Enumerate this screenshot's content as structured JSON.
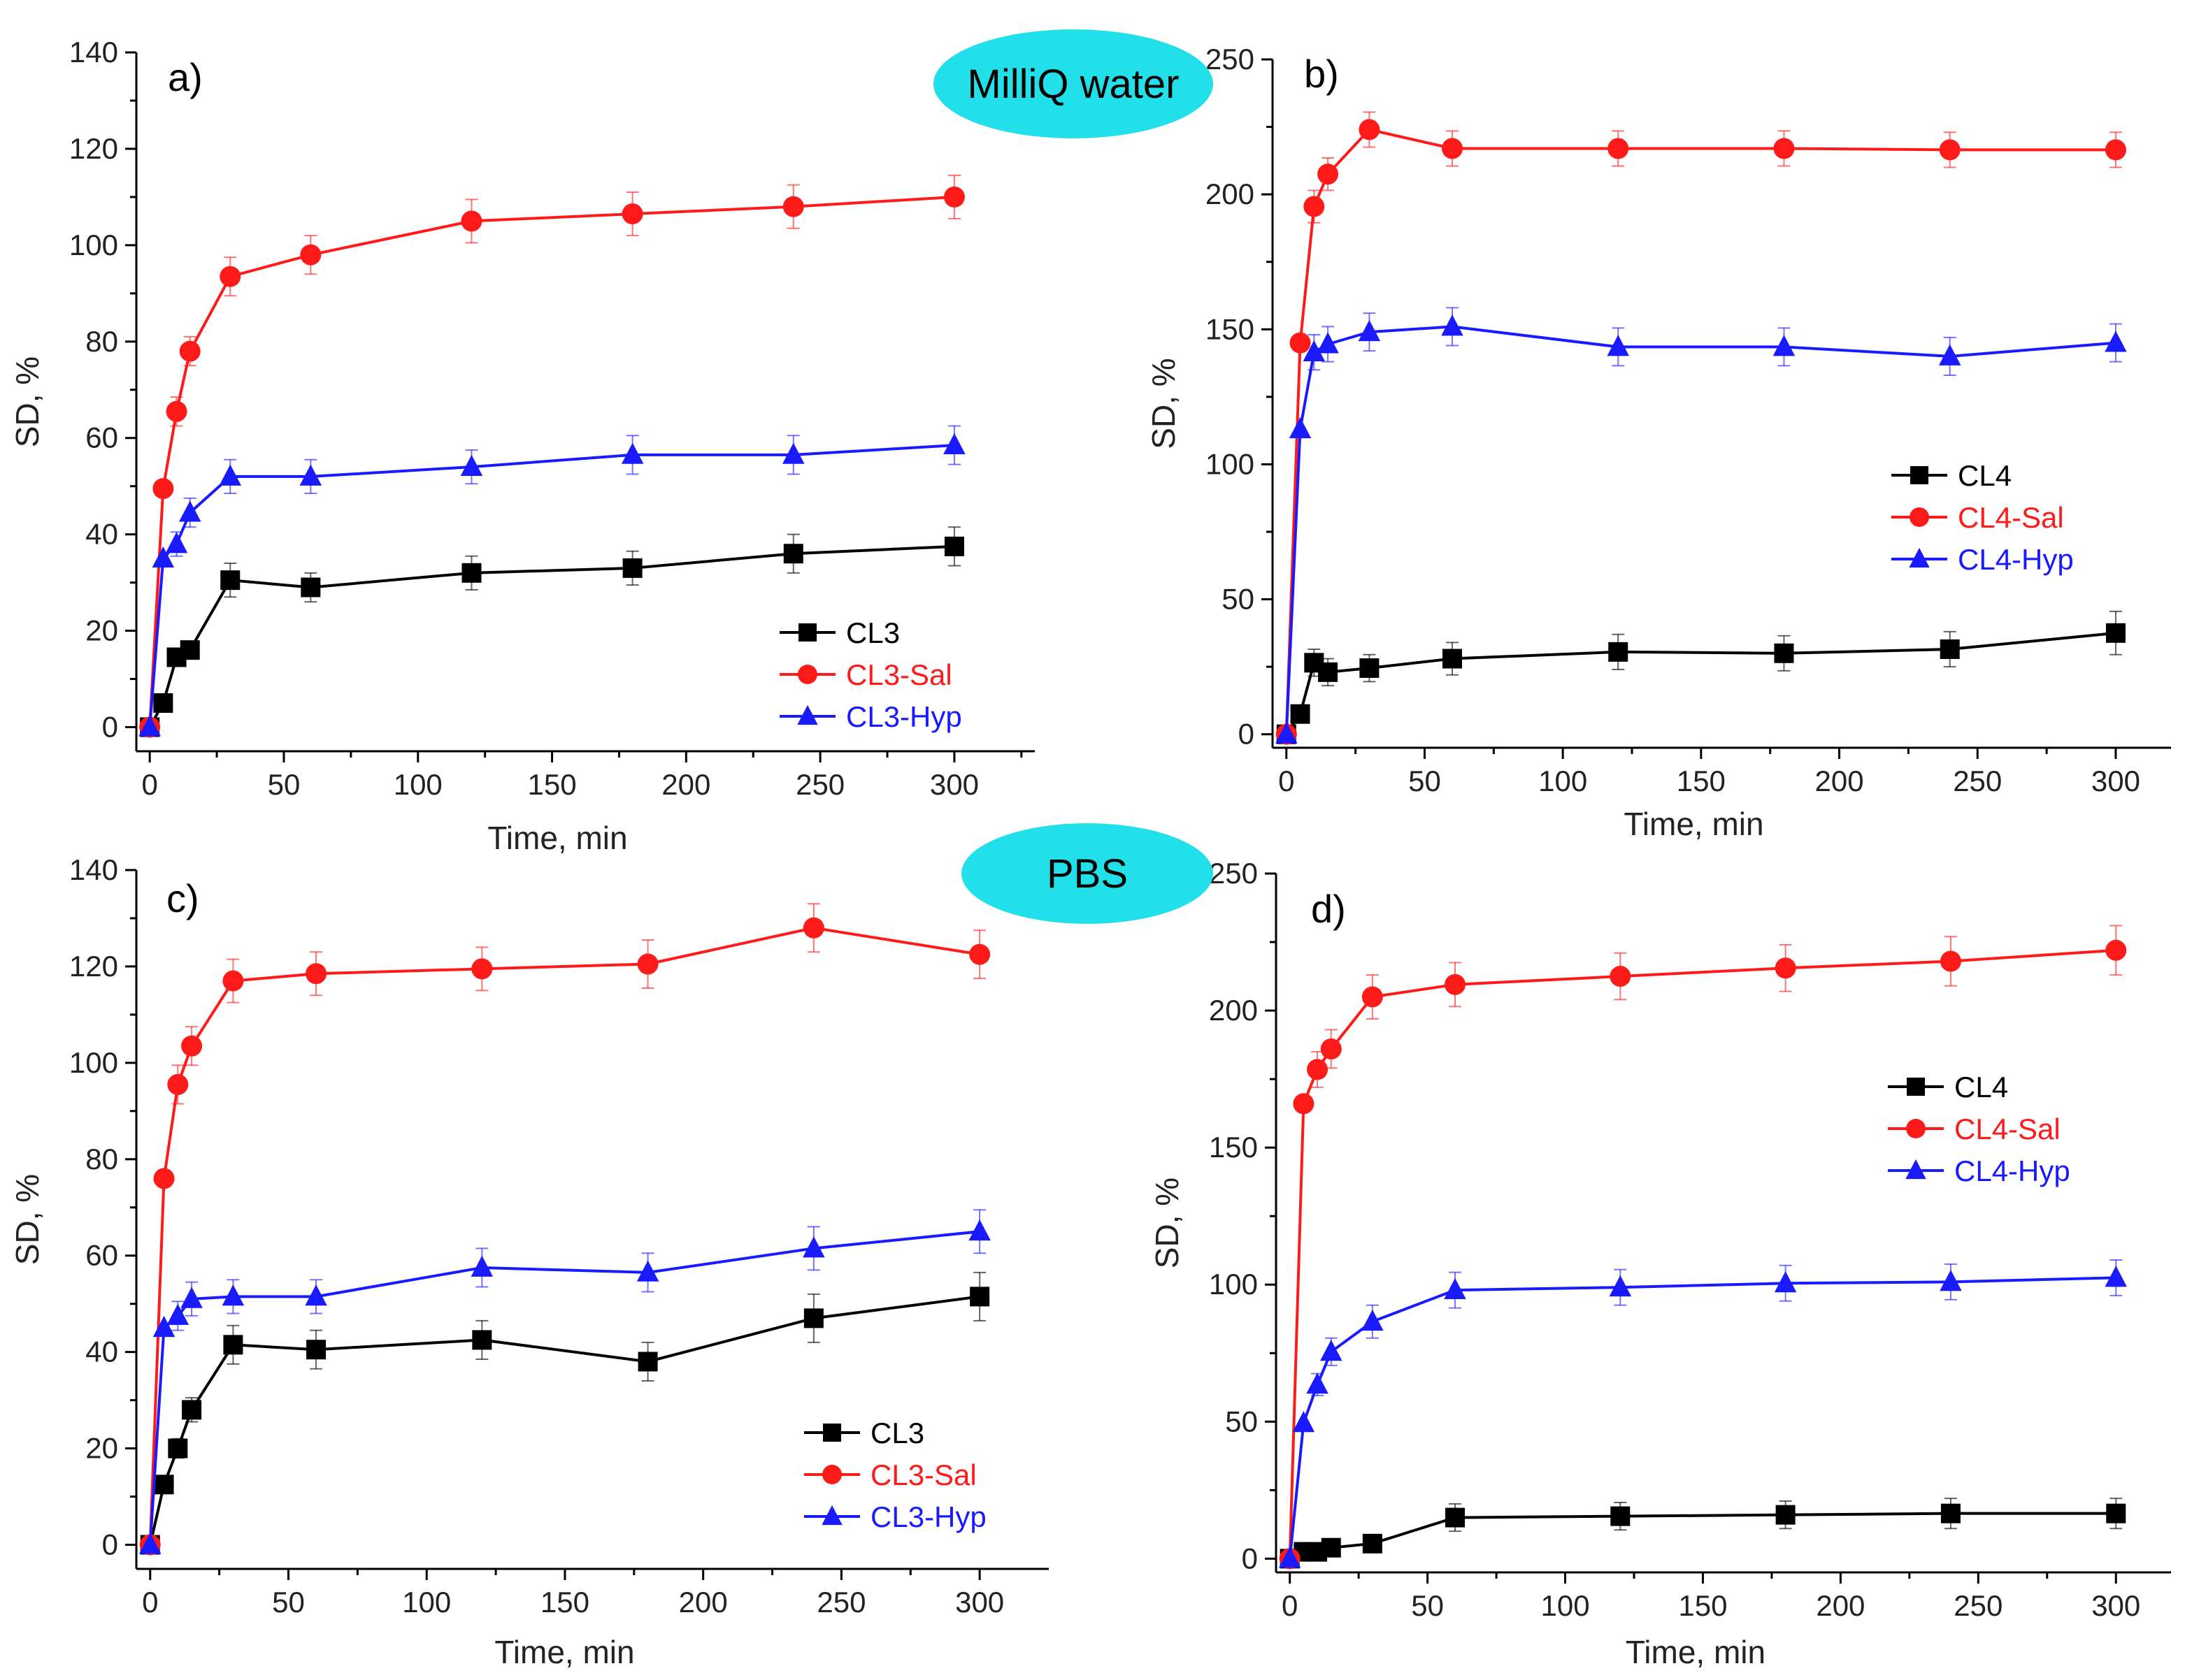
{
  "badges": {
    "top": "MilliQ water",
    "bottom": "PBS",
    "color": "#22e0ea"
  },
  "colors": {
    "black": "#000000",
    "red": "#ff1a1a",
    "blue": "#1a1aff"
  },
  "chart_data": [
    {
      "type": "line",
      "panel_label": "a)",
      "xlabel": "Time, min",
      "ylabel": "SD, %",
      "xlim": [
        -5,
        330
      ],
      "ylim": [
        -5,
        140
      ],
      "xticks": [
        0,
        50,
        100,
        150,
        200,
        250,
        300
      ],
      "yticks": [
        0,
        20,
        40,
        60,
        80,
        100,
        120,
        140
      ],
      "legend_position": "bottom-right",
      "x": [
        0,
        5,
        10,
        15,
        30,
        60,
        120,
        180,
        240,
        300
      ],
      "series": [
        {
          "name": "CL3",
          "color": "#000000",
          "marker": "square",
          "values": [
            0,
            5,
            14.5,
            16,
            30.5,
            29,
            32,
            33,
            36,
            37.5
          ],
          "errors": [
            0,
            0,
            0,
            0,
            3.5,
            3,
            3.5,
            3.5,
            4,
            4
          ]
        },
        {
          "name": "CL3-Sal",
          "color": "#ff1a1a",
          "marker": "circle",
          "values": [
            0,
            49.5,
            65.5,
            78,
            93.5,
            98,
            105,
            106.5,
            108,
            110
          ],
          "errors": [
            0,
            0,
            3,
            3,
            4,
            4,
            4.5,
            4.5,
            4.5,
            4.5
          ]
        },
        {
          "name": "CL3-Hyp",
          "color": "#1a1aff",
          "marker": "triangle",
          "values": [
            0,
            35,
            38,
            44.5,
            52,
            52,
            54,
            56.5,
            56.5,
            58.5
          ],
          "errors": [
            0,
            0,
            2.5,
            3,
            3.5,
            3.5,
            3.5,
            4,
            4,
            4
          ]
        }
      ]
    },
    {
      "type": "line",
      "panel_label": "b)",
      "xlabel": "Time, min",
      "ylabel": "SD, %",
      "xlim": [
        -5,
        320
      ],
      "ylim": [
        -5,
        250
      ],
      "xticks": [
        0,
        50,
        100,
        150,
        200,
        250,
        300
      ],
      "yticks": [
        0,
        50,
        100,
        150,
        200,
        250
      ],
      "legend_position": "right",
      "x": [
        0,
        5,
        10,
        15,
        30,
        60,
        120,
        180,
        240,
        300
      ],
      "series": [
        {
          "name": "CL4",
          "color": "#000000",
          "marker": "square",
          "values": [
            0,
            7.5,
            26.5,
            23,
            24.5,
            28,
            30.5,
            30,
            31.5,
            37.5
          ],
          "errors": [
            0,
            0,
            5,
            5,
            5,
            6,
            6.5,
            6.5,
            6.5,
            8
          ]
        },
        {
          "name": "CL4-Sal",
          "color": "#ff1a1a",
          "marker": "circle",
          "values": [
            0,
            145,
            195.5,
            207.5,
            224,
            217,
            217,
            217,
            216.5,
            216.5
          ],
          "errors": [
            0,
            0,
            6,
            6,
            6.5,
            6.5,
            6.5,
            6.5,
            6.5,
            6.5
          ]
        },
        {
          "name": "CL4-Hyp",
          "color": "#1a1aff",
          "marker": "triangle",
          "values": [
            0,
            113,
            141.5,
            144.5,
            149,
            151,
            143.5,
            143.5,
            140,
            145
          ],
          "errors": [
            0,
            0,
            6.5,
            6.5,
            7,
            7,
            7,
            7,
            7,
            7
          ]
        }
      ]
    },
    {
      "type": "line",
      "panel_label": "c)",
      "xlabel": "Time, min",
      "ylabel": "SD, %",
      "xlim": [
        -5,
        325
      ],
      "ylim": [
        -5,
        140
      ],
      "xticks": [
        0,
        50,
        100,
        150,
        200,
        250,
        300
      ],
      "yticks": [
        0,
        20,
        40,
        60,
        80,
        100,
        120,
        140
      ],
      "legend_position": "bottom-right",
      "x": [
        0,
        5,
        10,
        15,
        30,
        60,
        120,
        180,
        240,
        300
      ],
      "series": [
        {
          "name": "CL3",
          "color": "#000000",
          "marker": "square",
          "values": [
            0,
            12.5,
            20,
            28,
            41.5,
            40.5,
            42.5,
            38,
            47,
            51.5
          ],
          "errors": [
            0,
            0,
            2,
            2.5,
            4,
            4,
            4,
            4,
            5,
            5
          ]
        },
        {
          "name": "CL3-Sal",
          "color": "#ff1a1a",
          "marker": "circle",
          "values": [
            0,
            76,
            95.5,
            103.5,
            117,
            118.5,
            119.5,
            120.5,
            128,
            122.5
          ],
          "errors": [
            0,
            0,
            4,
            4,
            4.5,
            4.5,
            4.5,
            5,
            5,
            5
          ]
        },
        {
          "name": "CL3-Hyp",
          "color": "#1a1aff",
          "marker": "triangle",
          "values": [
            0,
            45,
            47.5,
            51,
            51.5,
            51.5,
            57.5,
            56.5,
            61.5,
            65
          ],
          "errors": [
            0,
            0,
            3,
            3.5,
            3.5,
            3.5,
            4,
            4,
            4.5,
            4.5
          ]
        }
      ]
    },
    {
      "type": "line",
      "panel_label": "d)",
      "xlabel": "Time, min",
      "ylabel": "SD, %",
      "xlim": [
        -5,
        320
      ],
      "ylim": [
        -5,
        250
      ],
      "xticks": [
        0,
        50,
        100,
        150,
        200,
        250,
        300
      ],
      "yticks": [
        0,
        50,
        100,
        150,
        200,
        250
      ],
      "legend_position": "right",
      "x": [
        0,
        5,
        10,
        15,
        30,
        60,
        120,
        180,
        240,
        300
      ],
      "series": [
        {
          "name": "CL4",
          "color": "#000000",
          "marker": "square",
          "values": [
            0,
            2.5,
            2.5,
            4,
            5.5,
            15,
            15.5,
            16,
            16.5,
            16.5
          ],
          "errors": [
            0,
            0,
            0,
            0,
            0,
            5,
            5,
            5,
            5.5,
            5.5
          ]
        },
        {
          "name": "CL4-Sal",
          "color": "#ff1a1a",
          "marker": "circle",
          "values": [
            0,
            166,
            178.5,
            186,
            205,
            209.5,
            212.5,
            215.5,
            218,
            222
          ],
          "errors": [
            0,
            0,
            6.5,
            7,
            8,
            8,
            8.5,
            8.5,
            9,
            9
          ]
        },
        {
          "name": "CL4-Hyp",
          "color": "#1a1aff",
          "marker": "triangle",
          "values": [
            0,
            49.5,
            63.5,
            75.5,
            86.5,
            98,
            99,
            100.5,
            101,
            102.5
          ],
          "errors": [
            0,
            0,
            4,
            5,
            6,
            6.5,
            6.5,
            6.5,
            6.5,
            6.5
          ]
        }
      ]
    }
  ]
}
